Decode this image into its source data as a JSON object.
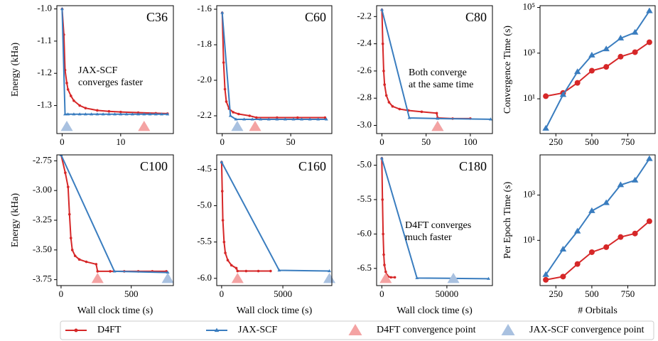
{
  "chart_data": [
    {
      "type": "line",
      "title": "C36",
      "ylabel": "Energy (kHa)",
      "annotation": [
        "JAX-SCF",
        "converges faster"
      ],
      "xlim": [
        -0.9,
        19
      ],
      "xticks": [
        0,
        10
      ],
      "ylim": [
        -1.387,
        -0.99
      ],
      "yticks": [
        {
          "value": -1.0,
          "label": "-1.0"
        },
        -1.1,
        -1.2,
        -1.3
      ],
      "series": [
        {
          "name": "D4FT",
          "color": "#d62728",
          "x": [
            0,
            0.3,
            0.5,
            0.8,
            1,
            1.5,
            2,
            3,
            4,
            6,
            8,
            10,
            13,
            16,
            18
          ],
          "values": [
            -1.0,
            -1.08,
            -1.19,
            -1.23,
            -1.25,
            -1.27,
            -1.285,
            -1.3,
            -1.308,
            -1.315,
            -1.318,
            -1.32,
            -1.322,
            -1.324,
            -1.325
          ]
        },
        {
          "name": "JAX-SCF",
          "color": "#3a7dbf",
          "x": [
            0,
            0.5,
            1,
            2,
            3,
            4,
            5,
            6,
            7,
            8,
            9,
            10,
            11,
            12,
            13,
            14,
            15,
            16,
            17,
            18
          ],
          "values": [
            -1.0,
            -1.327,
            -1.327,
            -1.327,
            -1.327,
            -1.327,
            -1.327,
            -1.327,
            -1.327,
            -1.327,
            -1.327,
            -1.327,
            -1.327,
            -1.327,
            -1.327,
            -1.327,
            -1.327,
            -1.327,
            -1.327,
            -1.327
          ]
        },
        {
          "name": "D4FT convergence point",
          "color": "#f4a3a3",
          "x": [
            14
          ]
        },
        {
          "name": "JAX-SCF convergence point",
          "color": "#a9c1e0",
          "x": [
            0.8
          ]
        }
      ]
    },
    {
      "type": "line",
      "title": "C60",
      "xlim": [
        -4,
        80
      ],
      "xticks": [
        0,
        50
      ],
      "ylim": [
        -2.3,
        -1.58
      ],
      "yticks": [
        -1.6,
        -1.8,
        {
          "value": -2.0,
          "label": "-2.0"
        },
        -2.2
      ],
      "series": [
        {
          "color": "#d62728",
          "x": [
            0,
            1,
            2,
            3,
            5,
            8,
            12,
            20,
            25,
            40,
            55,
            75
          ],
          "values": [
            -1.62,
            -1.9,
            -2.05,
            -2.12,
            -2.16,
            -2.18,
            -2.19,
            -2.2,
            -2.21,
            -2.21,
            -2.21,
            -2.21
          ]
        },
        {
          "color": "#3a7dbf",
          "x": [
            0,
            6,
            10,
            16,
            22,
            28,
            34,
            40,
            46,
            52,
            58,
            64,
            70,
            76
          ],
          "values": [
            -1.62,
            -2.2,
            -2.22,
            -2.22,
            -2.22,
            -2.22,
            -2.22,
            -2.22,
            -2.22,
            -2.22,
            -2.22,
            -2.22,
            -2.22,
            -2.22
          ]
        },
        {
          "color": "#f4a3a3",
          "x": [
            24
          ]
        },
        {
          "color": "#a9c1e0",
          "x": [
            11
          ]
        }
      ]
    },
    {
      "type": "line",
      "title": "C80",
      "annotation": [
        "Both converge",
        "at the same time"
      ],
      "xlim": [
        -6,
        125
      ],
      "xticks": [
        0,
        50,
        100
      ],
      "ylim": [
        -3.06,
        -2.12
      ],
      "yticks": [
        -2.2,
        -2.4,
        -2.6,
        -2.8,
        {
          "value": -3.0,
          "label": "-3.0"
        }
      ],
      "series": [
        {
          "color": "#d62728",
          "x": [
            0,
            1,
            2,
            3,
            5,
            8,
            12,
            20,
            30,
            45,
            62,
            63,
            80,
            100
          ],
          "values": [
            -2.15,
            -2.4,
            -2.6,
            -2.7,
            -2.78,
            -2.83,
            -2.86,
            -2.88,
            -2.89,
            -2.9,
            -2.91,
            -2.945,
            -2.95,
            -2.95
          ]
        },
        {
          "color": "#3a7dbf",
          "x": [
            0,
            31,
            63,
            123
          ],
          "values": [
            -2.15,
            -2.945,
            -2.95,
            -2.955
          ]
        },
        {
          "color": "#a9c1e0",
          "x": [
            63
          ]
        },
        {
          "color": "#f4a3a3",
          "x": [
            63
          ]
        }
      ]
    },
    {
      "type": "line",
      "ylabel": "Convergence Time (s)",
      "log_y": true,
      "xlim": [
        140,
        940
      ],
      "xticks": [
        250,
        500,
        750
      ],
      "ylim": [
        0.3,
        120000
      ],
      "yticks": [
        {
          "value": 10,
          "label": "10¹"
        },
        {
          "value": 1000,
          "label": "10³"
        },
        {
          "value": 100000,
          "label": "10⁵"
        }
      ],
      "series": [
        {
          "color": "#d62728",
          "x": [
            180,
            300,
            400,
            500,
            600,
            700,
            800,
            900
          ],
          "values": [
            13,
            18,
            50,
            170,
            250,
            700,
            1100,
            3000
          ]
        },
        {
          "color": "#3a7dbf",
          "x": [
            180,
            300,
            400,
            500,
            600,
            700,
            800,
            900
          ],
          "values": [
            0.5,
            15,
            150,
            800,
            1500,
            4500,
            8000,
            70000
          ]
        }
      ]
    },
    {
      "type": "line",
      "title": "C100",
      "ylabel": "Energy (kHa)",
      "xlabel": "Wall clock time (s)",
      "xlim": [
        -30,
        800
      ],
      "xticks": [
        0,
        500
      ],
      "ylim": [
        -3.8,
        -2.7
      ],
      "yticks": [
        -2.75,
        {
          "value": -3.0,
          "label": "-3.00"
        },
        -3.25,
        {
          "value": -3.5,
          "label": "-3.50"
        },
        -3.75
      ],
      "series": [
        {
          "color": "#d62728",
          "x": [
            0,
            30,
            50,
            60,
            70,
            80,
            100,
            130,
            180,
            250,
            260,
            350,
            450,
            550,
            650,
            750
          ],
          "values": [
            -2.7,
            -2.85,
            -2.97,
            -3.2,
            -3.4,
            -3.5,
            -3.55,
            -3.58,
            -3.6,
            -3.62,
            -3.68,
            -3.68,
            -3.68,
            -3.68,
            -3.68,
            -3.68
          ]
        },
        {
          "color": "#3a7dbf",
          "x": [
            0,
            380,
            760
          ],
          "values": [
            -2.7,
            -3.68,
            -3.69
          ]
        },
        {
          "color": "#f4a3a3",
          "x": [
            260
          ]
        },
        {
          "color": "#a9c1e0",
          "x": [
            760
          ]
        }
      ]
    },
    {
      "type": "line",
      "title": "C160",
      "xlabel": "Wall clock time (s)",
      "xlim": [
        -400,
        9000
      ],
      "xticks": [
        0,
        5000
      ],
      "ylim": [
        -6.1,
        -4.3
      ],
      "yticks": [
        -4.5,
        {
          "value": -5.0,
          "label": "-5.0"
        },
        -5.5,
        {
          "value": -6.0,
          "label": "-6.0"
        }
      ],
      "series": [
        {
          "color": "#d62728",
          "x": [
            0,
            50,
            100,
            200,
            300,
            500,
            800,
            1200,
            1300,
            2000,
            3000,
            4000
          ],
          "values": [
            -4.4,
            -4.8,
            -5.2,
            -5.5,
            -5.65,
            -5.75,
            -5.82,
            -5.86,
            -5.9,
            -5.9,
            -5.9,
            -5.9
          ]
        },
        {
          "color": "#3a7dbf",
          "x": [
            0,
            4700,
            8800
          ],
          "values": [
            -4.4,
            -5.89,
            -5.9
          ]
        },
        {
          "color": "#f4a3a3",
          "x": [
            1300
          ]
        },
        {
          "color": "#a9c1e0",
          "x": [
            8800
          ]
        }
      ]
    },
    {
      "type": "line",
      "title": "C180",
      "xlabel": "Wall clock time (s)",
      "annotation": [
        "D4FT converges",
        "much faster"
      ],
      "xlim": [
        -4000,
        85000
      ],
      "xticks": [
        0,
        50000
      ],
      "ylim": [
        -6.75,
        -4.85
      ],
      "yticks": [
        {
          "value": -5.0,
          "label": "-5.0"
        },
        -5.5,
        {
          "value": -6.0,
          "label": "-6.0"
        },
        -6.5
      ],
      "series": [
        {
          "color": "#d62728",
          "x": [
            0,
            500,
            1000,
            1500,
            2000,
            3000,
            4000,
            5000,
            7000,
            10000
          ],
          "values": [
            -4.9,
            -5.5,
            -6.0,
            -6.3,
            -6.45,
            -6.55,
            -6.6,
            -6.62,
            -6.63,
            -6.63
          ]
        },
        {
          "color": "#3a7dbf",
          "x": [
            0,
            27000,
            55000,
            82000
          ],
          "values": [
            -4.9,
            -6.64,
            -6.645,
            -6.65
          ]
        },
        {
          "color": "#f4a3a3",
          "x": [
            3000
          ]
        },
        {
          "color": "#a9c1e0",
          "x": [
            55000
          ]
        }
      ]
    },
    {
      "type": "line",
      "ylabel": "Per Epoch Time (s)",
      "xlabel": "# Orbitals",
      "log_y": true,
      "xlim": [
        140,
        940
      ],
      "xticks": [
        250,
        500,
        750
      ],
      "ylim": [
        0.1,
        60000
      ],
      "yticks": [
        {
          "value": 10,
          "label": "10¹"
        },
        {
          "value": 1000,
          "label": "10³"
        }
      ],
      "series": [
        {
          "color": "#d62728",
          "x": [
            180,
            300,
            400,
            500,
            600,
            700,
            800,
            900
          ],
          "values": [
            0.18,
            0.25,
            0.9,
            3,
            5,
            14,
            20,
            70
          ]
        },
        {
          "color": "#3a7dbf",
          "x": [
            180,
            300,
            400,
            500,
            600,
            700,
            800,
            900
          ],
          "values": [
            0.3,
            4,
            25,
            200,
            450,
            2800,
            4500,
            40000
          ]
        }
      ]
    }
  ]
}
